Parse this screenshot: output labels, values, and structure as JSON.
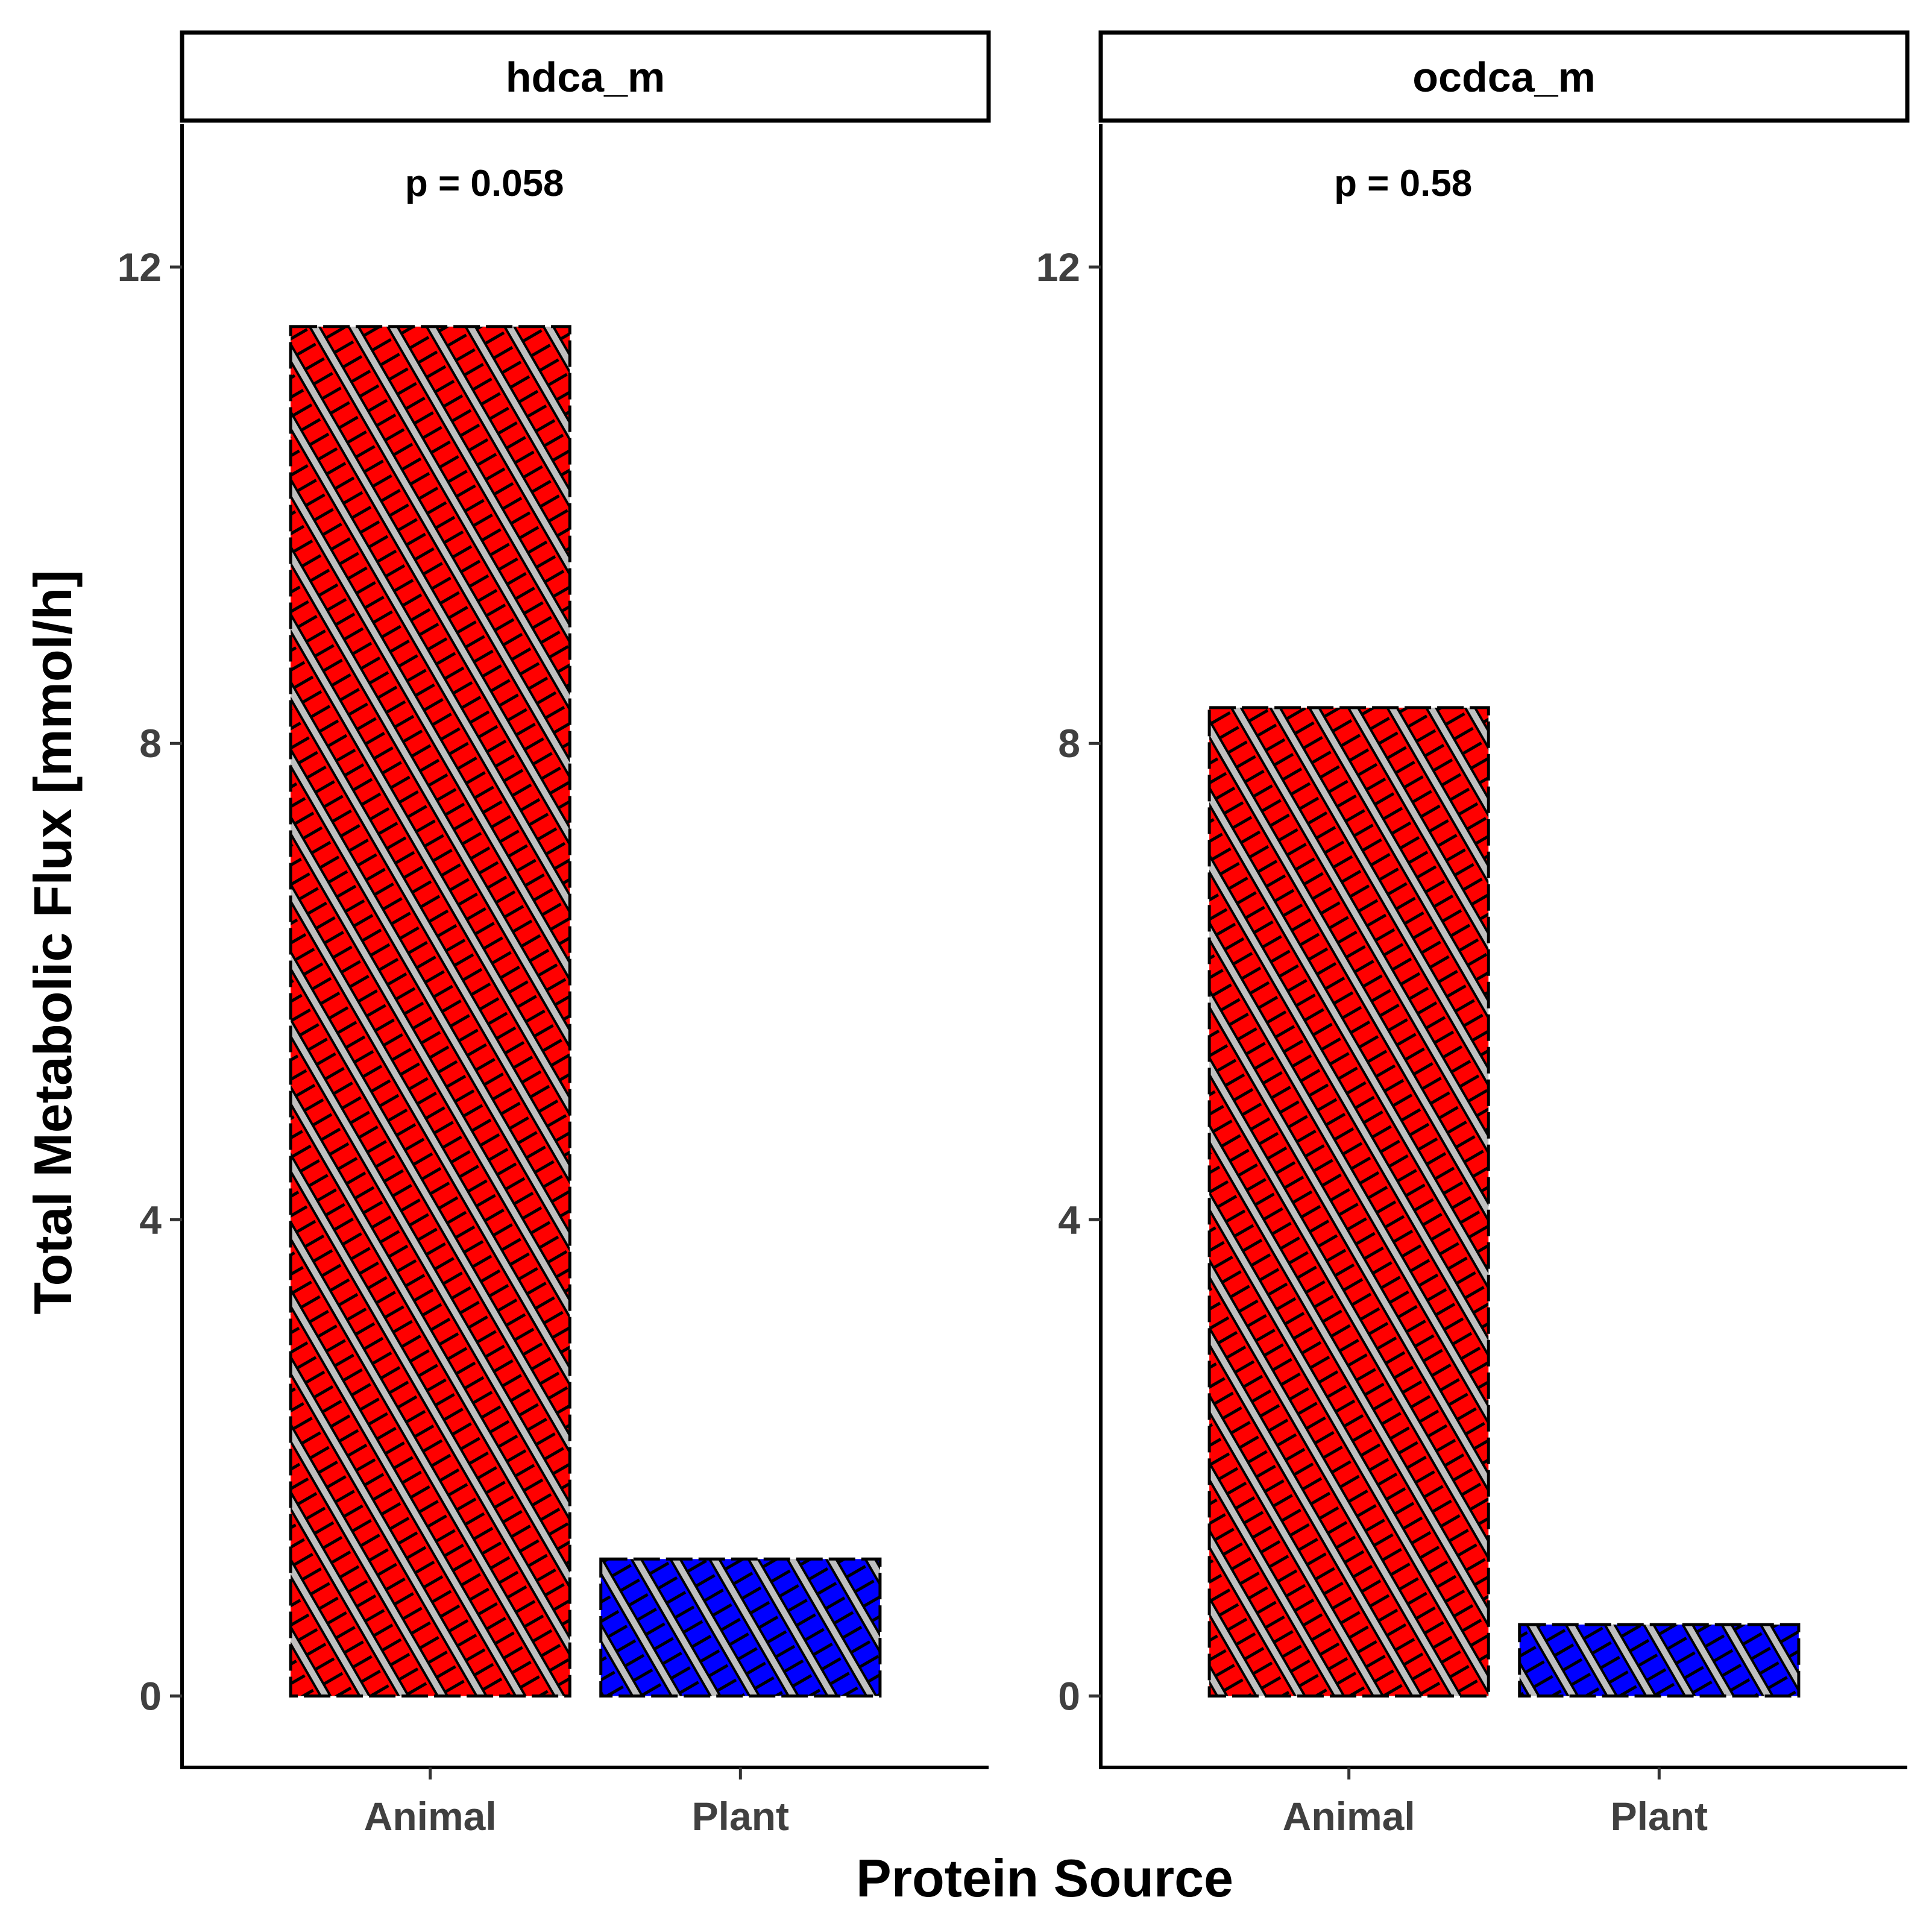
{
  "chart_data": {
    "type": "bar",
    "xlabel": "Protein Source",
    "ylabel": "Total Metabolic Flux [mmol/h]",
    "ylim": [
      -0.6,
      13.2
    ],
    "yticks": [
      0,
      4,
      8,
      12
    ],
    "categories": [
      "Animal",
      "Plant"
    ],
    "category_colors": {
      "Animal": "#ff0000",
      "Plant": "#0000ff"
    },
    "fill_pattern": "crosshatch",
    "pattern_colors": {
      "stripe": "#c0c0c0",
      "outline": "#000000"
    },
    "grid": false,
    "legend": "none",
    "panels": [
      {
        "title": "hdca_m",
        "annotation": "p = 0.058",
        "values": [
          11.5,
          1.15
        ]
      },
      {
        "title": "ocdca_m",
        "annotation": "p = 0.58",
        "values": [
          8.3,
          0.6
        ]
      }
    ]
  }
}
